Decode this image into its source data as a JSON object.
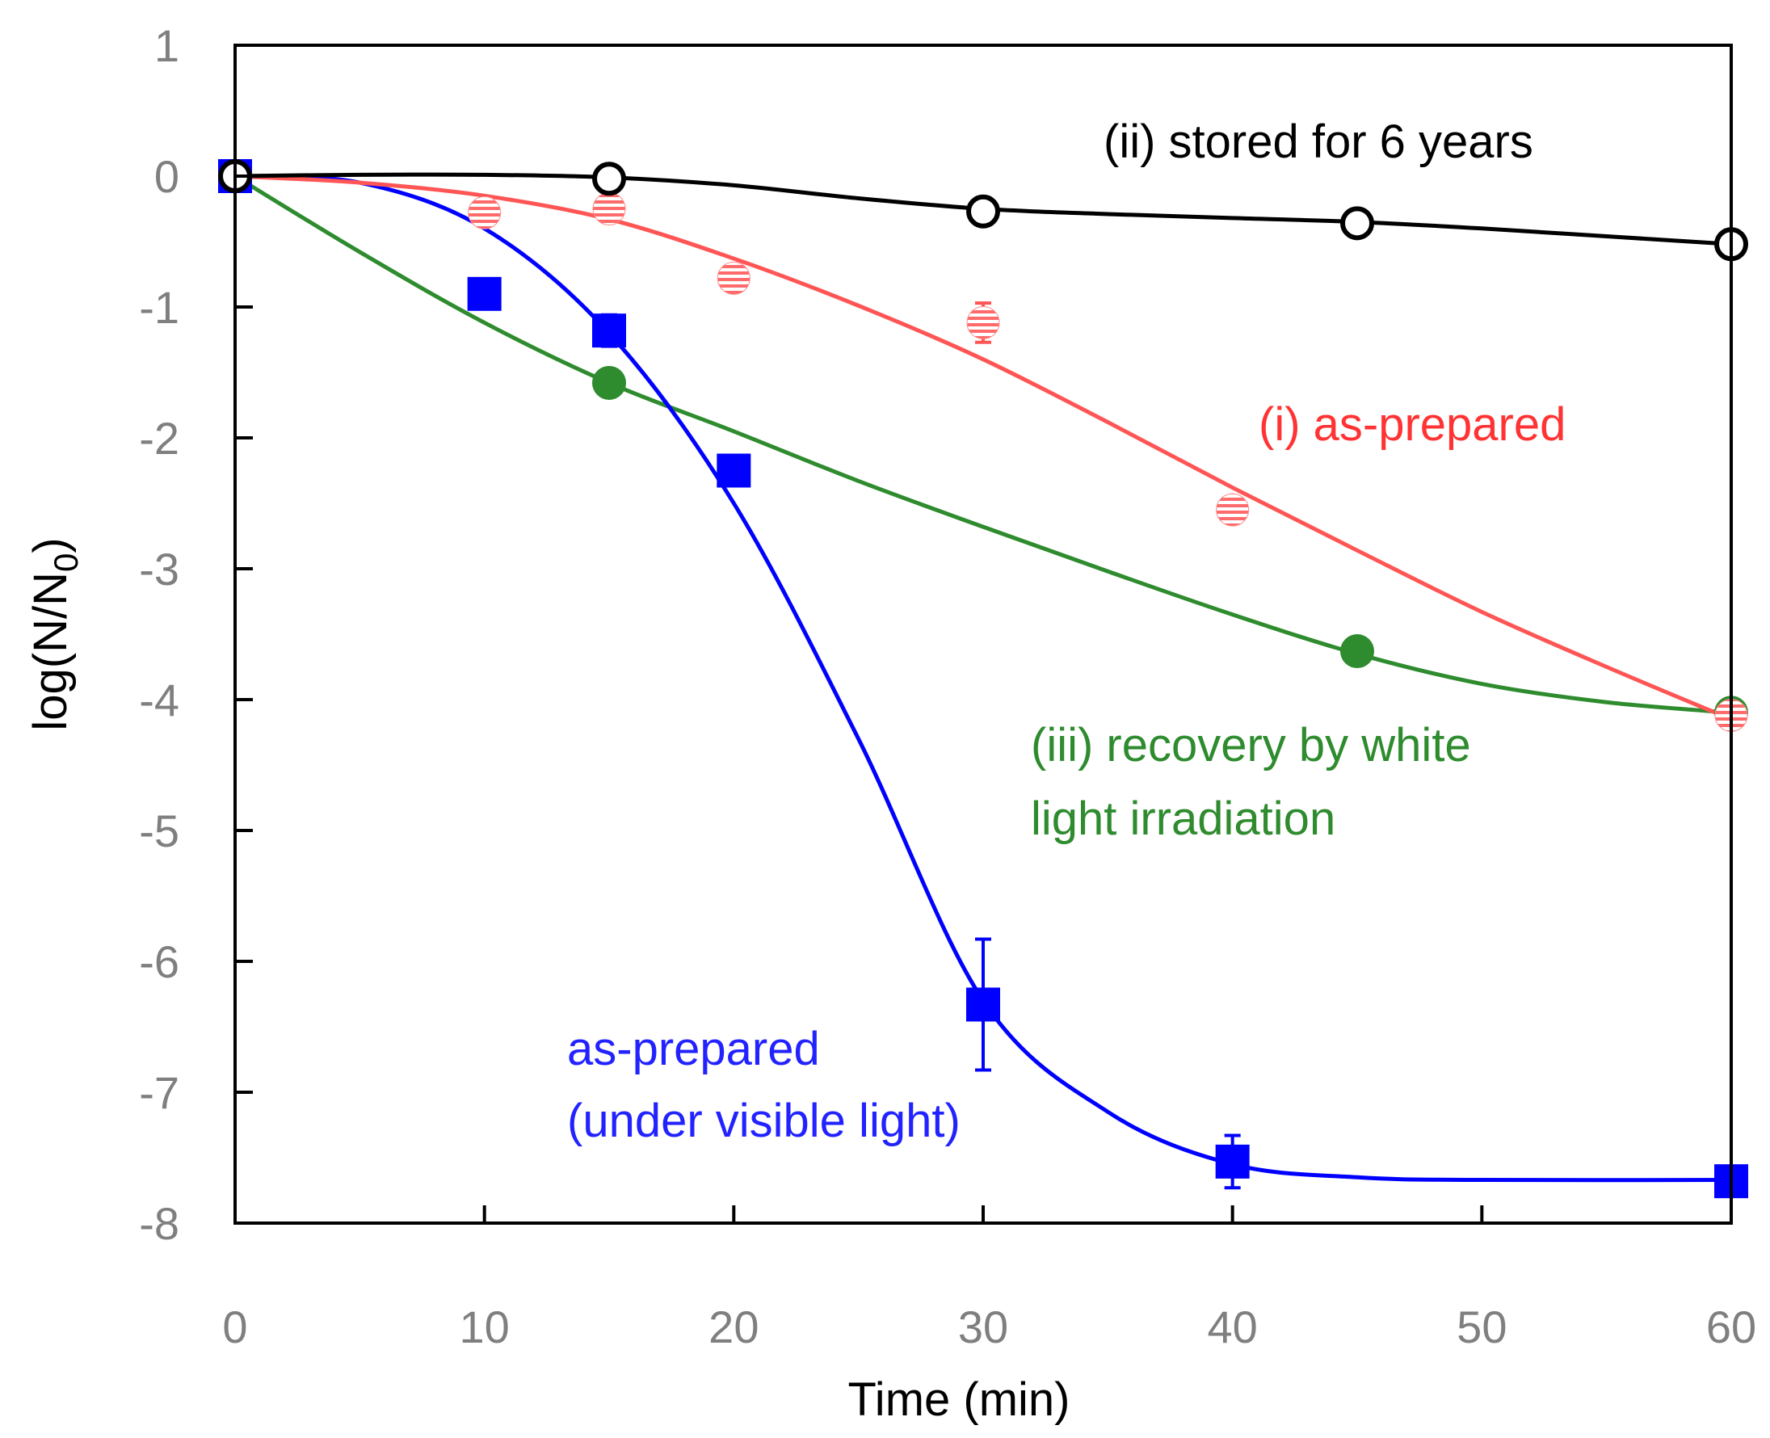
{
  "chart_data": {
    "type": "scatter",
    "title": "",
    "xlabel": "Time (min)",
    "ylabel": {
      "main": "log(N/N",
      "sub": "0",
      "close": ")"
    },
    "xlim": [
      0,
      60
    ],
    "ylim": [
      -8,
      1
    ],
    "xticks": [
      0,
      10,
      20,
      30,
      40,
      50,
      60
    ],
    "yticks": [
      1,
      0,
      -1,
      -2,
      -3,
      -4,
      -5,
      -6,
      -7,
      -8
    ],
    "grid": false,
    "series": [
      {
        "name": "as-prepared (under visible light)",
        "label_lines": [
          "as-prepared",
          "(under visible light)"
        ],
        "color": "#0000ff",
        "marker": "square",
        "x": [
          0,
          10,
          15,
          20,
          30,
          40,
          60
        ],
        "y": [
          0,
          -0.9,
          -1.18,
          -2.25,
          -6.33,
          -7.53,
          -7.68
        ],
        "err": [
          0,
          0,
          0.12,
          0,
          0.5,
          0.2,
          0
        ],
        "curve_x": [
          0,
          5,
          10,
          15,
          20,
          25,
          30,
          35,
          40,
          45,
          50,
          60
        ],
        "curve_y": [
          0,
          -0.05,
          -0.4,
          -1.2,
          -2.5,
          -4.3,
          -6.3,
          -7.15,
          -7.55,
          -7.65,
          -7.67,
          -7.67
        ]
      },
      {
        "name": "(iii) recovery by white light irradiation",
        "label_lines": [
          "(iii) recovery by white",
          "light irradiation"
        ],
        "color": "#2e8b2e",
        "marker": "filled-circle",
        "x": [
          0,
          15,
          45,
          60
        ],
        "y": [
          0,
          -1.58,
          -3.63,
          -4.1
        ],
        "err": [
          0,
          0,
          0,
          0
        ],
        "curve_x": [
          0,
          5,
          10,
          15,
          20,
          25,
          30,
          35,
          40,
          45,
          50,
          55,
          60
        ],
        "curve_y": [
          0,
          -0.58,
          -1.12,
          -1.58,
          -1.95,
          -2.33,
          -2.68,
          -3.02,
          -3.35,
          -3.65,
          -3.88,
          -4.02,
          -4.1
        ]
      },
      {
        "name": "(i) as-prepared",
        "label_lines": [
          "(i) as-prepared"
        ],
        "color": "#ff5555",
        "marker": "hatched-circle",
        "x": [
          0,
          10,
          15,
          20,
          30,
          40,
          60
        ],
        "y": [
          0,
          -0.28,
          -0.25,
          -0.78,
          -1.12,
          -2.55,
          -4.12
        ],
        "err": [
          0,
          0,
          0.1,
          0,
          0.15,
          0,
          0
        ],
        "curve_x": [
          0,
          5,
          10,
          15,
          20,
          25,
          30,
          35,
          40,
          45,
          50,
          55,
          60
        ],
        "curve_y": [
          0,
          -0.05,
          -0.15,
          -0.33,
          -0.63,
          -0.99,
          -1.4,
          -1.88,
          -2.38,
          -2.86,
          -3.33,
          -3.75,
          -4.15
        ]
      },
      {
        "name": "(ii) stored for 6 years",
        "label_lines": [
          "(ii) stored for 6 years"
        ],
        "color": "#000000",
        "marker": "open-circle",
        "x": [
          0,
          15,
          30,
          45,
          60
        ],
        "y": [
          0,
          -0.02,
          -0.27,
          -0.36,
          -0.52
        ],
        "err": [
          0,
          0,
          0,
          0,
          0
        ],
        "curve_x": [
          0,
          5,
          10,
          15,
          20,
          25,
          30,
          35,
          40,
          45,
          50,
          55,
          60
        ],
        "curve_y": [
          0,
          0.01,
          0.01,
          -0.01,
          -0.07,
          -0.17,
          -0.25,
          -0.29,
          -0.32,
          -0.35,
          -0.4,
          -0.46,
          -0.52
        ]
      }
    ]
  }
}
